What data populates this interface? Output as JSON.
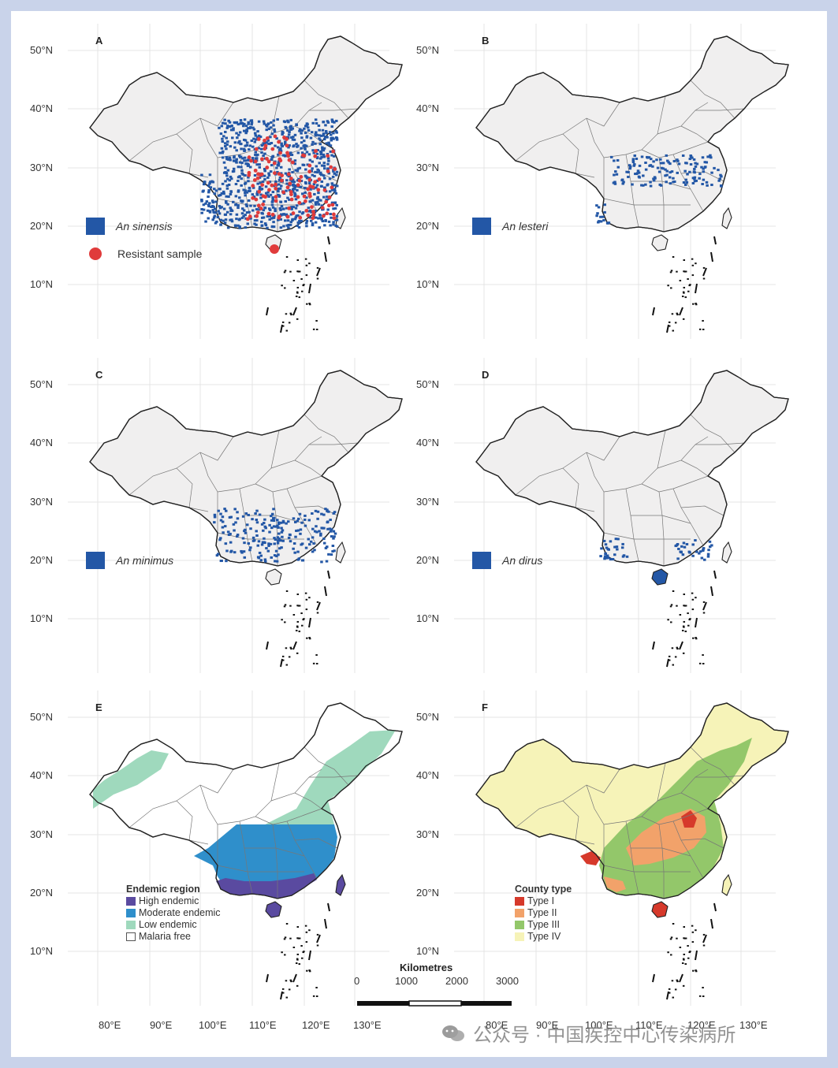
{
  "latitude_labels": [
    "50°N",
    "40°N",
    "30°N",
    "20°N",
    "10°N"
  ],
  "longitude_labels": [
    "80°E",
    "90°E",
    "100°E",
    "110°E",
    "120°E",
    "130°E"
  ],
  "panels": {
    "A": {
      "letter": "A",
      "species": "An sinensis",
      "resistant": "Resistant sample"
    },
    "B": {
      "letter": "B",
      "species": "An lesteri"
    },
    "C": {
      "letter": "C",
      "species": "An minimus"
    },
    "D": {
      "letter": "D",
      "species": "An dirus"
    },
    "E": {
      "letter": "E",
      "legend_title": "Endemic region",
      "legend": [
        "High endemic",
        "Moderate endemic",
        "Low endemic",
        "Malaria free"
      ]
    },
    "F": {
      "letter": "F",
      "legend_title": "County type",
      "legend": [
        "Type I",
        "Type II",
        "Type III",
        "Type IV"
      ]
    }
  },
  "colors": {
    "species_fill": "#2357a6",
    "resistant": "#e03b3b",
    "land": "#f0efef",
    "high_endemic": "#5a4aa0",
    "moderate_endemic": "#2f8fcb",
    "low_endemic": "#9fd9bd",
    "malaria_free": "#ffffff",
    "type1": "#d6392b",
    "type2": "#f2a26a",
    "type3": "#93c76a",
    "type4": "#f6f3b8"
  },
  "scale_bar": {
    "title": "Kilometres",
    "ticks": [
      "0",
      "1000",
      "2000",
      "3000"
    ]
  },
  "watermark": "公众号 · 中国疾控中心传染病所"
}
